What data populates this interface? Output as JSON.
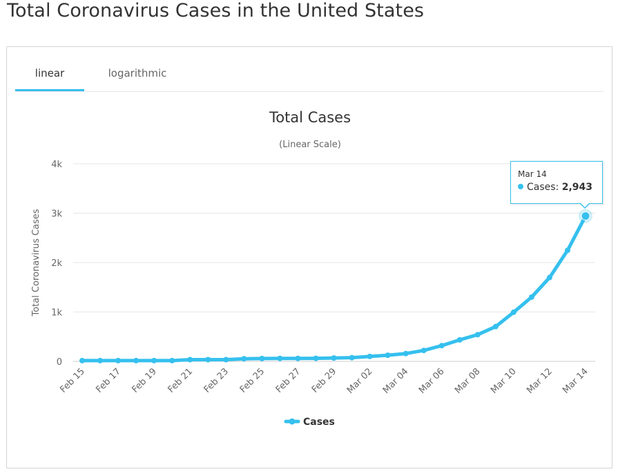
{
  "page": {
    "title": "Total Coronavirus Cases in the United States"
  },
  "tabs": [
    {
      "label": "linear",
      "active": true
    },
    {
      "label": "logarithmic",
      "active": false
    }
  ],
  "colors": {
    "series": "#35c0ee",
    "grid": "#e6e6e6",
    "axis_text": "#666666",
    "active_tab": "#35c0ee"
  },
  "tooltip": {
    "date": "Mar 14",
    "label": "Cases: ",
    "value": "2,943"
  },
  "chart_data": {
    "type": "line",
    "title": "Total Cases",
    "subtitle": "(Linear Scale)",
    "ylabel": "Total Coronavirus Cases",
    "xlabel": "",
    "ylim": [
      0,
      4000
    ],
    "yticks": [
      0,
      1000,
      2000,
      3000,
      4000
    ],
    "ytick_labels": [
      "0",
      "1k",
      "2k",
      "3k",
      "4k"
    ],
    "grid": true,
    "legend": "bottom-center",
    "x": [
      "Feb 15",
      "Feb 16",
      "Feb 17",
      "Feb 18",
      "Feb 19",
      "Feb 20",
      "Feb 21",
      "Feb 22",
      "Feb 23",
      "Feb 24",
      "Feb 25",
      "Feb 26",
      "Feb 27",
      "Feb 28",
      "Feb 29",
      "Mar 01",
      "Mar 02",
      "Mar 03",
      "Mar 04",
      "Mar 05",
      "Mar 06",
      "Mar 07",
      "Mar 08",
      "Mar 09",
      "Mar 10",
      "Mar 11",
      "Mar 12",
      "Mar 13",
      "Mar 14"
    ],
    "xtick_labels": [
      "Feb 15",
      "Feb 17",
      "Feb 19",
      "Feb 21",
      "Feb 23",
      "Feb 25",
      "Feb 27",
      "Feb 29",
      "Mar 02",
      "Mar 04",
      "Mar 06",
      "Mar 08",
      "Mar 10",
      "Mar 12",
      "Mar 14"
    ],
    "series": [
      {
        "name": "Cases",
        "values": [
          15,
          15,
          15,
          15,
          15,
          15,
          35,
          35,
          35,
          53,
          57,
          60,
          60,
          62,
          68,
          75,
          100,
          124,
          158,
          221,
          319,
          435,
          541,
          704,
          994,
          1301,
          1697,
          2247,
          2943
        ]
      }
    ]
  }
}
